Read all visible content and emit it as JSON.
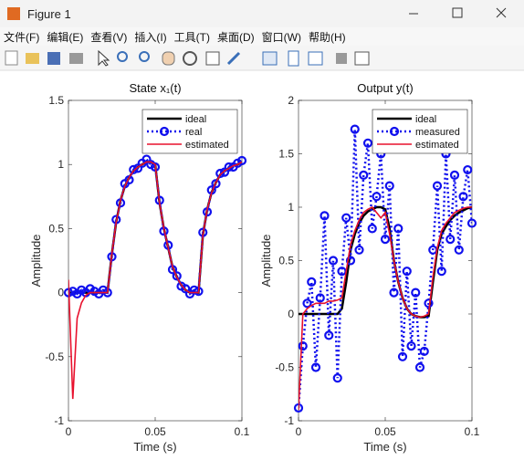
{
  "window": {
    "title": "Figure 1"
  },
  "menu": [
    "文件(F)",
    "编辑(E)",
    "查看(V)",
    "插入(I)",
    "工具(T)",
    "桌面(D)",
    "窗口(W)",
    "帮助(H)"
  ],
  "chart_data": [
    {
      "type": "line",
      "title": "State x₁(t)",
      "xlabel": "Time (s)",
      "ylabel": "Amplitude",
      "x": [
        0,
        0.0025,
        0.005,
        0.0075,
        0.01,
        0.0125,
        0.015,
        0.0175,
        0.02,
        0.0225,
        0.025,
        0.0275,
        0.03,
        0.0325,
        0.035,
        0.0375,
        0.04,
        0.0425,
        0.045,
        0.0475,
        0.05,
        0.0525,
        0.055,
        0.0575,
        0.06,
        0.0625,
        0.065,
        0.0675,
        0.07,
        0.0725,
        0.075,
        0.0775,
        0.08,
        0.0825,
        0.085,
        0.0875,
        0.09,
        0.0925,
        0.095,
        0.0975,
        0.1
      ],
      "series": [
        {
          "name": "ideal",
          "color": "#000000",
          "style": "solid",
          "width": 2.5,
          "marker": null,
          "values": [
            0,
            0,
            0,
            0,
            0,
            0,
            0,
            0,
            0,
            0,
            0.3,
            0.55,
            0.72,
            0.83,
            0.9,
            0.95,
            0.98,
            1.0,
            1.02,
            1.02,
            1.0,
            0.7,
            0.5,
            0.35,
            0.2,
            0.12,
            0.06,
            0.02,
            0,
            0,
            0,
            0.45,
            0.65,
            0.78,
            0.86,
            0.92,
            0.95,
            0.97,
            0.99,
            1.0,
            1.02
          ]
        },
        {
          "name": "real",
          "color": "#1010ee",
          "style": "dotted",
          "width": 2.5,
          "marker": "o",
          "values": [
            0.0,
            0.01,
            -0.01,
            0.02,
            0.0,
            0.03,
            0.01,
            -0.01,
            0.02,
            0.0,
            0.28,
            0.57,
            0.7,
            0.85,
            0.88,
            0.96,
            0.97,
            1.01,
            1.04,
            1.0,
            0.98,
            0.72,
            0.48,
            0.37,
            0.18,
            0.13,
            0.05,
            0.03,
            -0.01,
            0.02,
            0.01,
            0.47,
            0.63,
            0.8,
            0.85,
            0.93,
            0.94,
            0.98,
            0.98,
            1.01,
            1.03
          ]
        },
        {
          "name": "estimated",
          "color": "#e8112d",
          "style": "solid",
          "width": 1.6,
          "marker": null,
          "values": [
            0.1,
            -0.83,
            -0.2,
            -0.08,
            -0.02,
            0,
            0,
            0,
            0,
            0,
            0.3,
            0.55,
            0.72,
            0.83,
            0.9,
            0.95,
            0.98,
            1.0,
            1.02,
            1.02,
            1.0,
            0.7,
            0.5,
            0.35,
            0.2,
            0.12,
            0.06,
            0.02,
            0,
            0,
            0,
            0.45,
            0.65,
            0.78,
            0.86,
            0.92,
            0.95,
            0.97,
            0.99,
            1.0,
            1.02
          ]
        }
      ],
      "xlim": [
        0,
        0.1
      ],
      "ylim": [
        -1,
        1.5
      ],
      "xticks": [
        0,
        0.05,
        0.1
      ],
      "yticks": [
        -1,
        -0.5,
        0,
        0.5,
        1,
        1.5
      ],
      "legend": "upper right"
    },
    {
      "type": "line",
      "title": "Output y(t)",
      "xlabel": "Time (s)",
      "ylabel": "Amplitude",
      "x": [
        0,
        0.0025,
        0.005,
        0.0075,
        0.01,
        0.0125,
        0.015,
        0.0175,
        0.02,
        0.0225,
        0.025,
        0.0275,
        0.03,
        0.0325,
        0.035,
        0.0375,
        0.04,
        0.0425,
        0.045,
        0.0475,
        0.05,
        0.0525,
        0.055,
        0.0575,
        0.06,
        0.0625,
        0.065,
        0.0675,
        0.07,
        0.0725,
        0.075,
        0.0775,
        0.08,
        0.0825,
        0.085,
        0.0875,
        0.09,
        0.0925,
        0.095,
        0.0975,
        0.1
      ],
      "series": [
        {
          "name": "ideal",
          "color": "#000000",
          "style": "solid",
          "width": 2.5,
          "marker": null,
          "values": [
            0,
            0,
            0,
            0,
            0,
            0,
            0,
            0,
            0,
            0,
            0.05,
            0.3,
            0.6,
            0.75,
            0.85,
            0.92,
            0.96,
            0.98,
            1.0,
            1.0,
            0.98,
            0.8,
            0.5,
            0.3,
            0.15,
            0.05,
            0,
            -0.02,
            -0.03,
            -0.03,
            -0.02,
            0.3,
            0.6,
            0.75,
            0.82,
            0.88,
            0.92,
            0.95,
            0.97,
            0.99,
            1.0
          ]
        },
        {
          "name": "measured",
          "color": "#1010ee",
          "style": "dotted",
          "width": 2.5,
          "marker": "o",
          "values": [
            -0.88,
            -0.3,
            0.1,
            0.3,
            -0.5,
            0.15,
            0.92,
            -0.2,
            0.5,
            -0.6,
            0.4,
            0.9,
            0.5,
            1.73,
            0.6,
            1.3,
            1.6,
            0.8,
            1.1,
            1.5,
            0.7,
            1.2,
            0.2,
            0.8,
            -0.4,
            0.4,
            -0.3,
            0.2,
            -0.5,
            -0.35,
            0.1,
            0.6,
            1.2,
            0.4,
            1.5,
            0.7,
            1.3,
            0.6,
            1.1,
            1.35,
            0.85
          ]
        },
        {
          "name": "estimated",
          "color": "#e8112d",
          "style": "solid",
          "width": 1.6,
          "marker": null,
          "values": [
            -0.9,
            0,
            0.05,
            0.08,
            0.1,
            0.1,
            0.1,
            0.12,
            0.12,
            0.13,
            0.15,
            0.4,
            0.65,
            0.78,
            0.88,
            0.95,
            0.98,
            1.0,
            0.95,
            0.9,
            0.95,
            0.75,
            0.5,
            0.3,
            0.15,
            0.05,
            0,
            -0.02,
            -0.03,
            -0.02,
            0,
            0.35,
            0.62,
            0.78,
            0.85,
            0.9,
            0.95,
            0.97,
            0.99,
            1.0,
            1.0
          ]
        }
      ],
      "xlim": [
        0,
        0.1
      ],
      "ylim": [
        -1,
        2
      ],
      "xticks": [
        0,
        0.05,
        0.1
      ],
      "yticks": [
        -1,
        -0.5,
        0,
        0.5,
        1,
        1.5,
        2
      ],
      "legend": "upper right"
    }
  ]
}
